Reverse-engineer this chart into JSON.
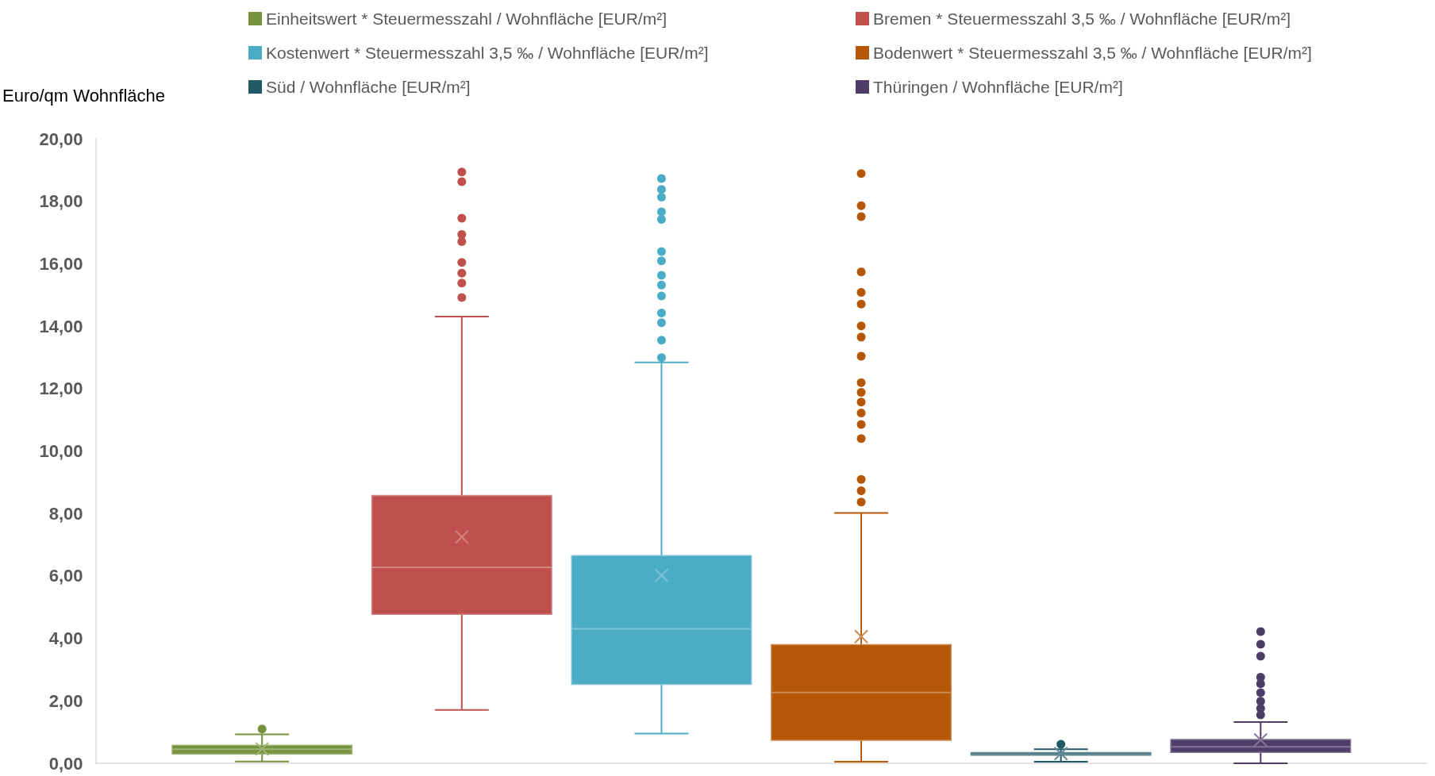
{
  "chart_data": {
    "type": "box",
    "ylabel": "Euro/qm Wohnfläche",
    "categories": [
      null
    ],
    "ylim": [
      0,
      20
    ],
    "yticks": [
      {
        "value": 0,
        "label": "0,00"
      },
      {
        "value": 2,
        "label": "2,00"
      },
      {
        "value": 4,
        "label": "4,00"
      },
      {
        "value": 6,
        "label": "6,00"
      },
      {
        "value": 8,
        "label": "8,00"
      },
      {
        "value": 10,
        "label": "10,00"
      },
      {
        "value": 12,
        "label": "12,00"
      },
      {
        "value": 14,
        "label": "14,00"
      },
      {
        "value": 16,
        "label": "16,00"
      },
      {
        "value": 18,
        "label": "18,00"
      },
      {
        "value": 20,
        "label": "20,00"
      }
    ],
    "grid": false,
    "legend": "top",
    "series": [
      {
        "name": "Einheitswert * Steuermesszahl / Wohnfläche [EUR/m²]",
        "color": "#77933c",
        "boxes": [
          {
            "low": 0.06,
            "q1": 0.3,
            "median": 0.45,
            "q3": 0.58,
            "high": 0.93,
            "mean": 0.46,
            "outliers": [
              1.1
            ]
          }
        ]
      },
      {
        "name": "Bremen * Steuermesszahl 3,5 ‰ / Wohnfläche [EUR/m²]",
        "color": "#c0504d",
        "boxes": [
          {
            "low": 1.71,
            "q1": 4.77,
            "median": 6.28,
            "q3": 8.58,
            "high": 14.31,
            "mean": 7.25,
            "outliers": [
              14.92,
              15.38,
              15.7,
              16.04,
              16.71,
              16.94,
              17.46,
              18.63,
              18.94
            ]
          }
        ]
      },
      {
        "name": "Kostenwert * Steuermesszahl 3,5 ‰ / Wohnfläche [EUR/m²]",
        "color": "#4bacc6",
        "boxes": [
          {
            "low": 0.95,
            "q1": 2.53,
            "median": 4.31,
            "q3": 6.65,
            "high": 12.84,
            "mean": 6.02,
            "outliers": [
              12.99,
              13.55,
              14.11,
              14.42,
              14.97,
              15.32,
              15.63,
              16.09,
              16.39,
              17.42,
              17.66,
              18.13,
              18.38,
              18.73
            ]
          }
        ]
      },
      {
        "name": "Bodenwert * Steuermesszahl 3,5 ‰ / Wohnfläche [EUR/m²]",
        "color": "#b65708",
        "boxes": [
          {
            "low": 0.05,
            "q1": 0.74,
            "median": 2.27,
            "q3": 3.8,
            "high": 8.02,
            "mean": 4.06,
            "outliers": [
              8.37,
              8.73,
              9.09,
              10.4,
              10.85,
              11.22,
              11.57,
              11.88,
              12.19,
              13.04,
              13.65,
              14.01,
              14.71,
              15.08,
              15.74,
              17.51,
              17.86,
              18.89
            ]
          }
        ]
      },
      {
        "name": "Süd / Wohnfläche [EUR/m²]",
        "color": "#215967",
        "boxes": [
          {
            "low": 0.05,
            "q1": 0.26,
            "median": 0.3,
            "q3": 0.34,
            "high": 0.45,
            "mean": 0.31,
            "outliers": [
              0.61
            ]
          }
        ]
      },
      {
        "name": "Thüringen / Wohnfläche [EUR/m²]",
        "color": "#4f3c68",
        "boxes": [
          {
            "low": 0.0,
            "q1": 0.35,
            "median": 0.53,
            "q3": 0.76,
            "high": 1.32,
            "mean": 0.75,
            "outliers": [
              1.55,
              1.76,
              1.99,
              2.26,
              2.55,
              2.76,
              3.43,
              3.81,
              4.22
            ]
          }
        ]
      }
    ]
  }
}
